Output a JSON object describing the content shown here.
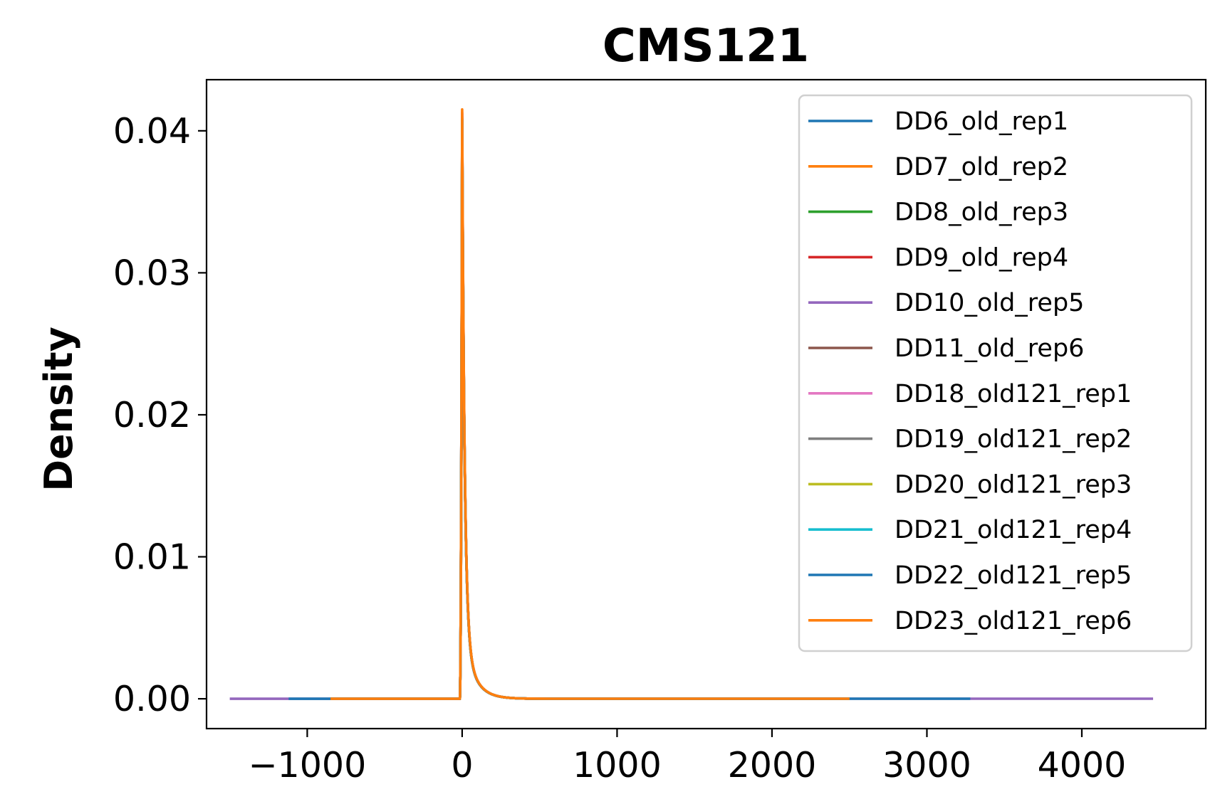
{
  "chart_data": {
    "type": "line",
    "title": "CMS121",
    "xlabel": "",
    "ylabel": "Density",
    "xlim": [
      -1650,
      4800
    ],
    "ylim": [
      -0.0021,
      0.0436
    ],
    "xticks": [
      -1000,
      0,
      1000,
      2000,
      3000,
      4000
    ],
    "xtick_labels": [
      "−1000",
      "0",
      "1000",
      "2000",
      "3000",
      "4000"
    ],
    "yticks": [
      0.0,
      0.01,
      0.02,
      0.03,
      0.04
    ],
    "ytick_labels": [
      "0.00",
      "0.01",
      "0.02",
      "0.03",
      "0.04"
    ],
    "grid": false,
    "legend_position": "top-right",
    "series": [
      {
        "name": "DD6_old_rep1",
        "color": "#1f77b4",
        "x_range": [
          -1120,
          3280
        ],
        "peak": 0.0405
      },
      {
        "name": "DD7_old_rep2",
        "color": "#ff7f0e",
        "x_range": [
          -850,
          2500
        ],
        "peak": 0.041
      },
      {
        "name": "DD8_old_rep3",
        "color": "#2ca02c",
        "x_range": [
          -850,
          2500
        ],
        "peak": 0.0408
      },
      {
        "name": "DD9_old_rep4",
        "color": "#d62728",
        "x_range": [
          -850,
          2500
        ],
        "peak": 0.0407
      },
      {
        "name": "DD10_old_rep5",
        "color": "#9467bd",
        "x_range": [
          -1500,
          4460
        ],
        "peak": 0.0412
      },
      {
        "name": "DD11_old_rep6",
        "color": "#8c564b",
        "x_range": [
          -850,
          2500
        ],
        "peak": 0.0406
      },
      {
        "name": "DD18_old121_rep1",
        "color": "#e377c2",
        "x_range": [
          -850,
          2500
        ],
        "peak": 0.0413
      },
      {
        "name": "DD19_old121_rep2",
        "color": "#7f7f7f",
        "x_range": [
          -850,
          2500
        ],
        "peak": 0.0409
      },
      {
        "name": "DD20_old121_rep3",
        "color": "#bcbd22",
        "x_range": [
          -850,
          2500
        ],
        "peak": 0.0408
      },
      {
        "name": "DD21_old121_rep4",
        "color": "#17becf",
        "x_range": [
          -850,
          2500
        ],
        "peak": 0.0407
      },
      {
        "name": "DD22_old121_rep5",
        "color": "#1f77b4",
        "x_range": [
          -850,
          2500
        ],
        "peak": 0.0408
      },
      {
        "name": "DD23_old121_rep6",
        "color": "#ff7f0e",
        "x_range": [
          -850,
          2500
        ],
        "peak": 0.0415
      }
    ]
  }
}
